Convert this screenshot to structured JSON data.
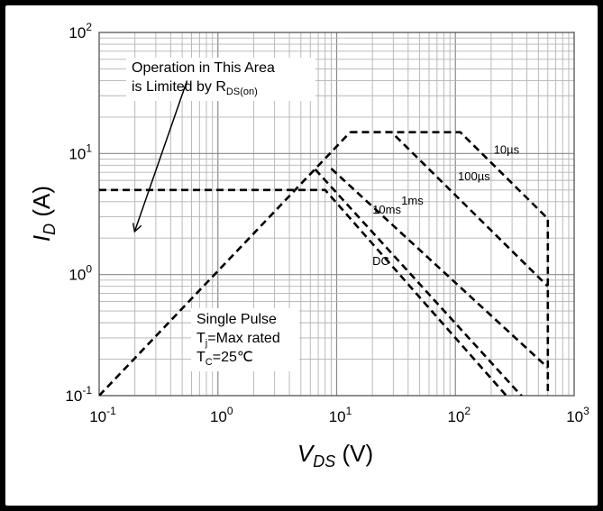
{
  "chart_data": {
    "type": "line",
    "title": "",
    "scale": {
      "x": "log",
      "y": "log"
    },
    "xlim": [
      0.1,
      1000
    ],
    "ylim": [
      0.1,
      100
    ],
    "grid": true,
    "xlabel": {
      "main": "V",
      "sub": "DS",
      "unit": " (V)"
    },
    "ylabel": {
      "main": "I",
      "sub": "D",
      "unit": " (A)"
    },
    "x_ticks": [
      {
        "value": 0.1,
        "base": "10",
        "exp": "-1"
      },
      {
        "value": 1,
        "base": "10",
        "exp": "0"
      },
      {
        "value": 10,
        "base": "10",
        "exp": "1"
      },
      {
        "value": 100,
        "base": "10",
        "exp": "2"
      },
      {
        "value": 1000,
        "base": "10",
        "exp": "3"
      }
    ],
    "y_ticks": [
      {
        "value": 0.1,
        "base": "10",
        "exp": "-1"
      },
      {
        "value": 1,
        "base": "10",
        "exp": "0"
      },
      {
        "value": 10,
        "base": "10",
        "exp": "1"
      },
      {
        "value": 100,
        "base": "10",
        "exp": "2"
      }
    ],
    "series": [
      {
        "name": "10µs",
        "x": [
          13,
          110,
          600,
          600
        ],
        "y": [
          15,
          15,
          2.9,
          0.05
        ]
      },
      {
        "name": "100µs",
        "x": [
          13,
          29,
          600
        ],
        "y": [
          15,
          15,
          0.8
        ]
      },
      {
        "name": "1ms",
        "x": [
          9,
          600
        ],
        "y": [
          7.5,
          0.17
        ]
      },
      {
        "name": "10ms",
        "x": [
          6.6,
          500
        ],
        "y": [
          7.4,
          0.07
        ]
      },
      {
        "name": "DC",
        "x": [
          0.1,
          8,
          500
        ],
        "y": [
          5,
          5,
          0.05
        ]
      },
      {
        "name": "",
        "x": [
          0.1,
          13
        ],
        "y": [
          0.1,
          15
        ]
      }
    ],
    "series_labels": [
      {
        "series": "10µs",
        "x": 210,
        "y": 10
      },
      {
        "series": "100µs",
        "x": 105,
        "y": 6
      },
      {
        "series": "1ms",
        "x": 35,
        "y": 3.8
      },
      {
        "series": "10ms",
        "x": 20,
        "y": 3.2
      },
      {
        "series": "DC",
        "x": 20,
        "y": 1.2
      }
    ],
    "annotations": {
      "region_line1": "Operation  in This Area",
      "region_line2_text": "is Limited by R",
      "region_line2_sub": "DS(on)",
      "arrow": {
        "from": {
          "x": 0.55,
          "y": 40
        },
        "to": {
          "x": 0.2,
          "y": 2.3
        }
      },
      "conditions": [
        {
          "main": "Single Pulse",
          "sub": "",
          "rest": ""
        },
        {
          "main": "T",
          "sub": "j",
          "rest": "=Max rated"
        },
        {
          "main": "T",
          "sub": "C",
          "rest": "=25℃"
        }
      ]
    }
  }
}
